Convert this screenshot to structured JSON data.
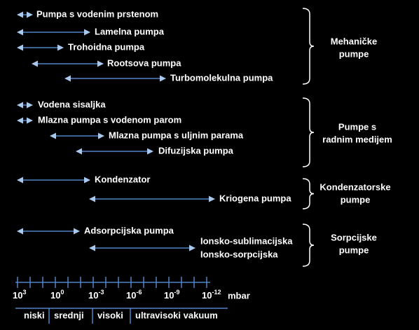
{
  "groups": [
    {
      "label": [
        "Mehaničke",
        "pumpe"
      ],
      "items": [
        [
          "Pumpa s vodenim prstenom"
        ],
        [
          "Lamelna pumpa"
        ],
        [
          "Trohoidna pumpa"
        ],
        [
          "Rootsova pumpa"
        ],
        [
          "Turbomolekulna pumpa"
        ]
      ]
    },
    {
      "label": [
        "Pumpe s",
        "radnim medijem"
      ],
      "items": [
        [
          "Vodena sisaljka"
        ],
        [
          "Mlazna pumpa s vodenom parom"
        ],
        [
          "Mlazna pumpa s uljnim parama"
        ],
        [
          "Difuzijska pumpa"
        ]
      ]
    },
    {
      "label": [
        "Kondenzatorske",
        "pumpe"
      ],
      "items": [
        [
          "Kondenzator"
        ],
        [
          "Kriogena pumpa"
        ]
      ]
    },
    {
      "label": [
        "Sorpcijske",
        "pumpe"
      ],
      "items": [
        [
          "Adsorpcijska pumpa"
        ],
        [
          "Ionsko-sublimacijska",
          "Ionsko-sorpcijska"
        ]
      ]
    }
  ],
  "axis": {
    "ticks": [
      {
        "base": "10",
        "exp": "3"
      },
      {
        "base": "10",
        "exp": "0"
      },
      {
        "base": "10",
        "exp": "-3"
      },
      {
        "base": "10",
        "exp": "-6"
      },
      {
        "base": "10",
        "exp": "-9"
      },
      {
        "base": "10",
        "exp": "-12"
      }
    ],
    "unit": "mbar",
    "regions": [
      "niski",
      "srednji",
      "visoki",
      "ultravisoki vakuum"
    ]
  }
}
